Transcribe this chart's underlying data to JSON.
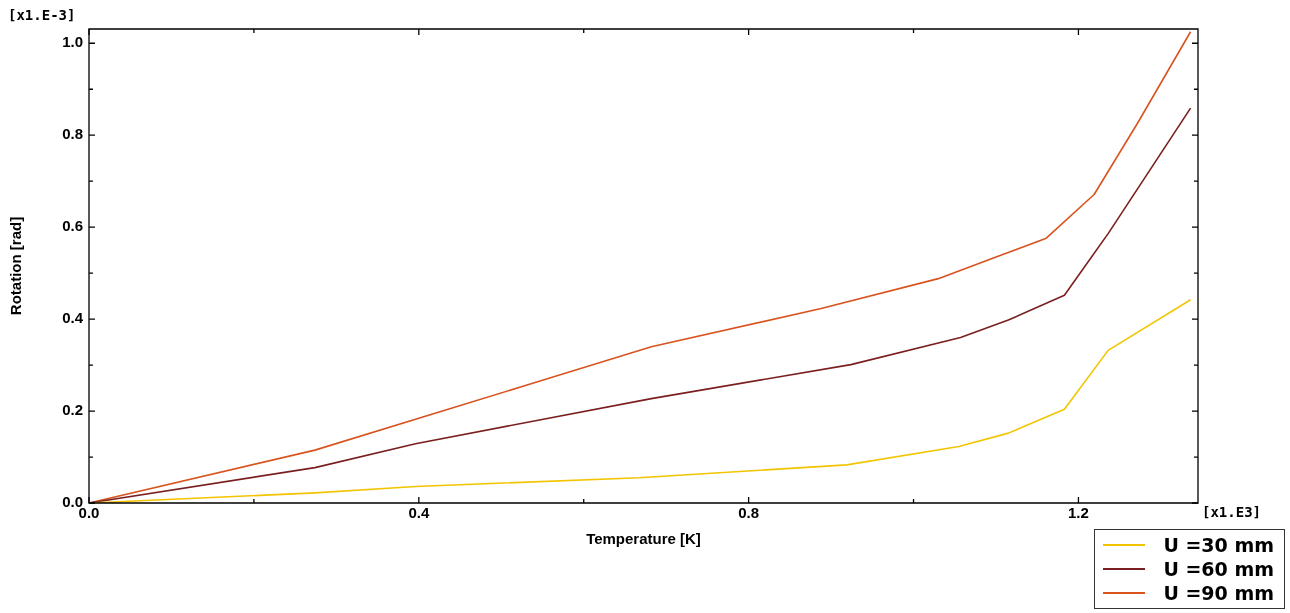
{
  "chart_data": {
    "type": "line",
    "xlabel": "Temperature [K]",
    "ylabel": "Rotation [rad]",
    "annotations": [
      "[x1.E-3]",
      "[x1.E3]"
    ],
    "xlim": [
      0,
      1.345
    ],
    "ylim": [
      0,
      1.031
    ],
    "xticks": [
      {
        "value": 0,
        "label": "0.0"
      },
      {
        "value": 0.2,
        "label": null
      },
      {
        "value": 0.4,
        "label": "0.4"
      },
      {
        "value": 0.6,
        "label": null
      },
      {
        "value": 0.8,
        "label": "0.8"
      },
      {
        "value": 1.0,
        "label": null
      },
      {
        "value": 1.2,
        "label": "1.2"
      }
    ],
    "yticks": [
      {
        "value": 0,
        "label": "0.0"
      },
      {
        "value": 0.1,
        "label": null
      },
      {
        "value": 0.2,
        "label": "0.2"
      },
      {
        "value": 0.3,
        "label": null
      },
      {
        "value": 0.4,
        "label": "0.4"
      },
      {
        "value": 0.5,
        "label": null
      },
      {
        "value": 0.6,
        "label": "0.6"
      },
      {
        "value": 0.7,
        "label": null
      },
      {
        "value": 0.8,
        "label": "0.8"
      },
      {
        "value": 0.9,
        "label": null
      },
      {
        "value": 1.0,
        "label": "1.0"
      }
    ],
    "grid": false,
    "legend": "bottom right",
    "marker": "none",
    "line_style": "solid",
    "series": [
      {
        "name": "U =30 mm",
        "color": "#f2c500",
        "x": [
          0,
          0.274,
          0.396,
          0.667,
          0.919,
          1.055,
          1.115,
          1.183,
          1.236,
          1.336
        ],
        "values": [
          0,
          0.022,
          0.036,
          0.055,
          0.083,
          0.123,
          0.152,
          0.204,
          0.332,
          0.442
        ]
      },
      {
        "name": "U =60 mm",
        "color": "#7a1f1f",
        "x": [
          0,
          0.274,
          0.396,
          0.682,
          0.924,
          1.057,
          1.115,
          1.183,
          1.236,
          1.336
        ],
        "values": [
          0,
          0.077,
          0.129,
          0.227,
          0.301,
          0.36,
          0.398,
          0.452,
          0.586,
          0.859
        ]
      },
      {
        "name": "U =90 mm",
        "color": "#d9531e",
        "x": [
          0,
          0.274,
          0.543,
          0.682,
          0.888,
          1.03,
          1.161,
          1.219,
          1.272,
          1.336
        ],
        "values": [
          0,
          0.115,
          0.263,
          0.34,
          0.423,
          0.488,
          0.576,
          0.671,
          0.827,
          1.025
        ]
      }
    ]
  }
}
